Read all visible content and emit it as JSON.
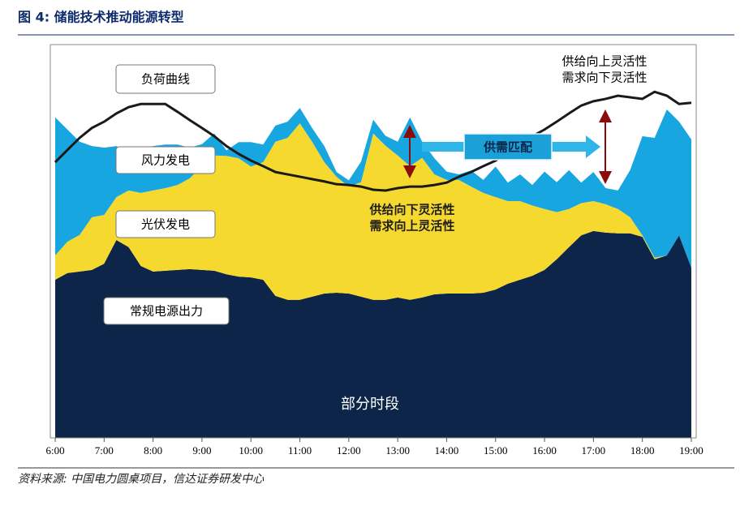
{
  "chart_data": {
    "type": "stacked_area_line",
    "title": "图 4:  储能技术推动能源转型",
    "source": "资料来源:  中国电力圆桌项目，信达证券研发中心",
    "x": [
      6,
      6.25,
      6.5,
      6.75,
      7,
      7.25,
      7.5,
      7.75,
      8,
      8.25,
      8.5,
      8.75,
      9,
      9.25,
      9.5,
      9.75,
      10,
      10.25,
      10.5,
      10.75,
      11,
      11.25,
      11.5,
      11.75,
      12,
      12.25,
      12.5,
      12.75,
      13,
      13.25,
      13.5,
      13.75,
      14,
      14.25,
      14.5,
      14.75,
      15,
      15.25,
      15.5,
      15.75,
      16,
      16.25,
      16.5,
      16.75,
      17,
      17.25,
      17.5,
      17.75,
      18,
      18.25,
      18.5,
      18.75,
      19
    ],
    "xlim": [
      5.9,
      19.1
    ],
    "xticks": [
      {
        "value": 6,
        "label": "6:00"
      },
      {
        "value": 7,
        "label": "7:00"
      },
      {
        "value": 8,
        "label": "8:00"
      },
      {
        "value": 9,
        "label": "9:00"
      },
      {
        "value": 10,
        "label": "10:00"
      },
      {
        "value": 11,
        "label": "11:00"
      },
      {
        "value": 12,
        "label": "12:00"
      },
      {
        "value": 13,
        "label": "13:00"
      },
      {
        "value": 14,
        "label": "14:00"
      },
      {
        "value": 15,
        "label": "15:00"
      },
      {
        "value": 16,
        "label": "16:00"
      },
      {
        "value": 17,
        "label": "17:00"
      },
      {
        "value": 18,
        "label": "18:00"
      },
      {
        "value": 19,
        "label": "19:00"
      }
    ],
    "ylim": [
      0,
      100
    ],
    "series": [
      {
        "name": "常规电源出力",
        "color": "#0c2548",
        "stack": true,
        "values": [
          40.2,
          41.9,
          42.3,
          42.7,
          44.3,
          50.3,
          48.5,
          43.7,
          42.3,
          42.5,
          42.7,
          42.9,
          42.7,
          42.5,
          41.6,
          41.0,
          40.8,
          40.2,
          36.1,
          35.1,
          35.1,
          35.9,
          36.7,
          36.9,
          36.7,
          35.9,
          35.1,
          35.1,
          35.7,
          35.1,
          35.7,
          36.5,
          36.7,
          36.7,
          36.7,
          36.9,
          37.7,
          39.2,
          40.2,
          41.2,
          42.7,
          45.4,
          48.5,
          51.5,
          52.6,
          52.2,
          52.0,
          52.0,
          51.1,
          45.4,
          46.4,
          51.5,
          43.3
        ]
      },
      {
        "name": "光伏发电",
        "color": "#f6d92f",
        "stack": true,
        "values": [
          6.2,
          8.0,
          9.3,
          13.4,
          12.4,
          10.9,
          14.4,
          18.6,
          20.6,
          21.0,
          21.6,
          23.1,
          26.4,
          29.3,
          30.1,
          30.1,
          28.2,
          29.9,
          39.2,
          41.2,
          44.9,
          39.4,
          33.4,
          29.5,
          27.2,
          29.1,
          42.3,
          39.2,
          36.1,
          34.0,
          35.5,
          30.5,
          28.9,
          28.9,
          27.2,
          25.4,
          23.5,
          21.0,
          20.0,
          17.9,
          15.5,
          12.0,
          9.7,
          8.2,
          7.6,
          7.2,
          6.2,
          4.1,
          0.4,
          0.4,
          0,
          0,
          0
        ]
      },
      {
        "name": "风力发电",
        "color": "#17a6e0",
        "stack": true,
        "values": [
          35.1,
          28.5,
          23.7,
          18.1,
          17.1,
          13.0,
          9.7,
          10.9,
          11.3,
          11.1,
          10.3,
          7.8,
          5.6,
          5.6,
          1.4,
          4.1,
          6.2,
          4.5,
          4.1,
          4.1,
          3.9,
          3.5,
          4.1,
          1.2,
          1.6,
          5.2,
          3.5,
          2.5,
          3.5,
          12.4,
          4.1,
          4.1,
          2.1,
          1.4,
          4.1,
          3.3,
          7.8,
          4.7,
          6.8,
          5.2,
          9.5,
          7.6,
          9.9,
          5.2,
          7.4,
          4.1,
          4.7,
          12.0,
          25.2,
          30.5,
          37.1,
          28.9,
          32.6
        ]
      },
      {
        "name": "负荷曲线",
        "color": "#1a1a1a",
        "stack": false,
        "values": [
          70.1,
          73.2,
          76.3,
          78.8,
          80.4,
          82.5,
          84.1,
          84.9,
          84.9,
          84.9,
          82.9,
          80.8,
          78.8,
          76.7,
          74.2,
          72.2,
          70.5,
          69.1,
          67.6,
          67.0,
          66.4,
          65.8,
          65.2,
          64.5,
          64.3,
          63.9,
          63.1,
          62.9,
          63.5,
          63.9,
          63.9,
          64.3,
          64.9,
          66.4,
          67.6,
          69.1,
          70.5,
          72.6,
          74.6,
          76.7,
          78.4,
          80.4,
          82.5,
          84.5,
          85.6,
          86.2,
          87.0,
          86.6,
          86.2,
          88.0,
          87.0,
          84.9,
          85.2
        ]
      }
    ],
    "annotations": [
      "供给向上灵活性",
      "需求向下灵活性",
      "供给向下灵活性",
      "需求向上灵活性",
      "供需匹配",
      "部分时段"
    ]
  }
}
